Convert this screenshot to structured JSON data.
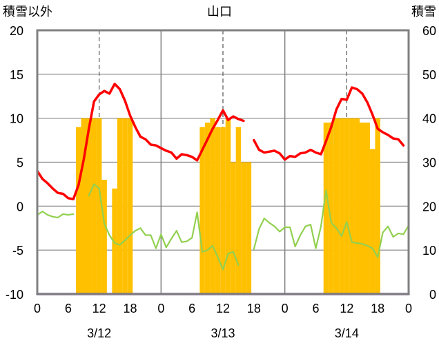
{
  "chart_data": {
    "type": "bar+line",
    "title": "山口",
    "left_axis_label": "積雪以外",
    "right_axis_label": "積雪",
    "left_ylim": [
      -10,
      20
    ],
    "left_ticks": [
      "-10",
      "-5",
      "0",
      "5",
      "10",
      "15",
      "20"
    ],
    "right_ylim": [
      0,
      60
    ],
    "right_ticks": [
      "0",
      "10",
      "20",
      "30",
      "40",
      "50",
      "60"
    ],
    "x_range": [
      0,
      72
    ],
    "x_ticks": [
      {
        "x": 0,
        "label": "0"
      },
      {
        "x": 6,
        "label": "6"
      },
      {
        "x": 12,
        "label": "12"
      },
      {
        "x": 18,
        "label": "18"
      },
      {
        "x": 24,
        "label": "0"
      },
      {
        "x": 30,
        "label": "6"
      },
      {
        "x": 36,
        "label": "12"
      },
      {
        "x": 42,
        "label": "18"
      },
      {
        "x": 48,
        "label": "0"
      },
      {
        "x": 54,
        "label": "6"
      },
      {
        "x": 60,
        "label": "12"
      },
      {
        "x": 66,
        "label": "18"
      },
      {
        "x": 72,
        "label": "0"
      }
    ],
    "date_labels": [
      {
        "x": 12,
        "label": "3/12"
      },
      {
        "x": 36,
        "label": "3/13"
      },
      {
        "x": 60,
        "label": "3/14"
      }
    ],
    "day_lines": [
      24,
      48
    ],
    "dashed_lines": [
      12,
      36,
      60
    ],
    "grid": true,
    "colors": {
      "snow": "#ffc000",
      "temperature": "#ff0000",
      "green_line": "#92d050",
      "purple_line": "#7030a0",
      "grid": "#808080",
      "frame": "#808080"
    },
    "snow_depth": [
      {
        "x": 8,
        "value": 38
      },
      {
        "x": 9,
        "value": 40
      },
      {
        "x": 10,
        "value": 40
      },
      {
        "x": 11,
        "value": 40
      },
      {
        "x": 12,
        "value": 40
      },
      {
        "x": 13,
        "value": 26
      },
      {
        "x": 15,
        "value": 24
      },
      {
        "x": 16,
        "value": 40
      },
      {
        "x": 17,
        "value": 40
      },
      {
        "x": 18,
        "value": 40
      },
      {
        "x": 32,
        "value": 38
      },
      {
        "x": 33,
        "value": 39
      },
      {
        "x": 34,
        "value": 40
      },
      {
        "x": 35,
        "value": 38
      },
      {
        "x": 36,
        "value": 38
      },
      {
        "x": 37,
        "value": 40
      },
      {
        "x": 38,
        "value": 30
      },
      {
        "x": 39,
        "value": 38
      },
      {
        "x": 40,
        "value": 30
      },
      {
        "x": 41,
        "value": 30
      },
      {
        "x": 56,
        "value": 39
      },
      {
        "x": 57,
        "value": 39
      },
      {
        "x": 58,
        "value": 40
      },
      {
        "x": 59,
        "value": 40
      },
      {
        "x": 60,
        "value": 40
      },
      {
        "x": 61,
        "value": 40
      },
      {
        "x": 62,
        "value": 40
      },
      {
        "x": 63,
        "value": 39
      },
      {
        "x": 64,
        "value": 39
      },
      {
        "x": 65,
        "value": 33
      },
      {
        "x": 66,
        "value": 40
      }
    ],
    "temperature": [
      {
        "x": 0,
        "y": 4.0
      },
      {
        "x": 1,
        "y": 3.1
      },
      {
        "x": 2,
        "y": 2.6
      },
      {
        "x": 3,
        "y": 2.0
      },
      {
        "x": 4,
        "y": 1.5
      },
      {
        "x": 5,
        "y": 1.4
      },
      {
        "x": 6,
        "y": 0.9
      },
      {
        "x": 7,
        "y": 0.8
      },
      {
        "x": 8,
        "y": 2.4
      },
      {
        "x": 9,
        "y": 5.3
      },
      {
        "x": 10,
        "y": 8.8
      },
      {
        "x": 11,
        "y": 11.9
      },
      {
        "x": 12,
        "y": 12.7
      },
      {
        "x": 13,
        "y": 13.1
      },
      {
        "x": 14,
        "y": 12.8
      },
      {
        "x": 15,
        "y": 13.9
      },
      {
        "x": 16,
        "y": 13.3
      },
      {
        "x": 17,
        "y": 12.0
      },
      {
        "x": 18,
        "y": 10.3
      },
      {
        "x": 19,
        "y": 9.0
      },
      {
        "x": 20,
        "y": 7.9
      },
      {
        "x": 21,
        "y": 7.6
      },
      {
        "x": 22,
        "y": 7.0
      },
      {
        "x": 23,
        "y": 6.9
      },
      {
        "x": 24,
        "y": 6.6
      },
      {
        "x": 25,
        "y": 6.3
      },
      {
        "x": 26,
        "y": 6.1
      },
      {
        "x": 27,
        "y": 5.4
      },
      {
        "x": 28,
        "y": 5.9
      },
      {
        "x": 29,
        "y": 5.8
      },
      {
        "x": 30,
        "y": 5.6
      },
      {
        "x": 31,
        "y": 5.2
      },
      {
        "x": 32,
        "y": 6.4
      },
      {
        "x": 33,
        "y": 7.6
      },
      {
        "x": 34,
        "y": 8.8
      },
      {
        "x": 35,
        "y": 9.8
      },
      {
        "x": 36,
        "y": 10.9
      },
      {
        "x": 37,
        "y": 9.8
      },
      {
        "x": 38,
        "y": 10.2
      },
      {
        "x": 39,
        "y": 9.9
      },
      {
        "x": 40,
        "y": 9.7
      },
      {
        "x": 41,
        "y": null
      },
      {
        "x": 42,
        "y": 7.5
      },
      {
        "x": 43,
        "y": 6.4
      },
      {
        "x": 44,
        "y": 6.1
      },
      {
        "x": 45,
        "y": 6.2
      },
      {
        "x": 46,
        "y": 6.3
      },
      {
        "x": 47,
        "y": 6.0
      },
      {
        "x": 48,
        "y": 5.3
      },
      {
        "x": 49,
        "y": 5.7
      },
      {
        "x": 50,
        "y": 5.6
      },
      {
        "x": 51,
        "y": 6.0
      },
      {
        "x": 52,
        "y": 6.1
      },
      {
        "x": 53,
        "y": 6.4
      },
      {
        "x": 54,
        "y": 6.1
      },
      {
        "x": 55,
        "y": 5.9
      },
      {
        "x": 56,
        "y": 7.4
      },
      {
        "x": 57,
        "y": 9.0
      },
      {
        "x": 58,
        "y": 11.0
      },
      {
        "x": 59,
        "y": 12.2
      },
      {
        "x": 60,
        "y": 12.1
      },
      {
        "x": 61,
        "y": 13.5
      },
      {
        "x": 62,
        "y": 13.3
      },
      {
        "x": 63,
        "y": 12.8
      },
      {
        "x": 64,
        "y": 11.8
      },
      {
        "x": 65,
        "y": 10.4
      },
      {
        "x": 66,
        "y": 8.8
      },
      {
        "x": 67,
        "y": 8.4
      },
      {
        "x": 68,
        "y": 8.1
      },
      {
        "x": 69,
        "y": 7.7
      },
      {
        "x": 70,
        "y": 7.6
      },
      {
        "x": 71,
        "y": 6.9
      }
    ],
    "green_series": [
      {
        "x": 0,
        "y": -1.0
      },
      {
        "x": 1,
        "y": -0.6
      },
      {
        "x": 2,
        "y": -1.0
      },
      {
        "x": 3,
        "y": -1.2
      },
      {
        "x": 4,
        "y": -1.3
      },
      {
        "x": 5,
        "y": -0.9
      },
      {
        "x": 6,
        "y": -1.0
      },
      {
        "x": 7,
        "y": -0.9
      },
      {
        "x": 8,
        "y": null
      },
      {
        "x": 9,
        "y": null
      },
      {
        "x": 10,
        "y": 1.2
      },
      {
        "x": 11,
        "y": 2.5
      },
      {
        "x": 12,
        "y": 2.0
      },
      {
        "x": 13,
        "y": -2.0
      },
      {
        "x": 14,
        "y": -3.3
      },
      {
        "x": 15,
        "y": -4.2
      },
      {
        "x": 16,
        "y": -4.4
      },
      {
        "x": 17,
        "y": -3.9
      },
      {
        "x": 18,
        "y": -3.3
      },
      {
        "x": 19,
        "y": -2.8
      },
      {
        "x": 20,
        "y": -2.5
      },
      {
        "x": 21,
        "y": -3.3
      },
      {
        "x": 22,
        "y": -3.3
      },
      {
        "x": 23,
        "y": -4.8
      },
      {
        "x": 24,
        "y": -3.2
      },
      {
        "x": 25,
        "y": -4.7
      },
      {
        "x": 26,
        "y": -3.7
      },
      {
        "x": 27,
        "y": -2.8
      },
      {
        "x": 28,
        "y": -4.1
      },
      {
        "x": 29,
        "y": -4.0
      },
      {
        "x": 30,
        "y": -3.6
      },
      {
        "x": 31,
        "y": -0.7
      },
      {
        "x": 32,
        "y": -5.2
      },
      {
        "x": 33,
        "y": -5.0
      },
      {
        "x": 34,
        "y": -4.5
      },
      {
        "x": 35,
        "y": -5.8
      },
      {
        "x": 36,
        "y": -7.2
      },
      {
        "x": 37,
        "y": -5.4
      },
      {
        "x": 38,
        "y": -5.2
      },
      {
        "x": 39,
        "y": -6.7
      },
      {
        "x": 40,
        "y": null
      },
      {
        "x": 41,
        "y": null
      },
      {
        "x": 42,
        "y": -4.9
      },
      {
        "x": 43,
        "y": -2.6
      },
      {
        "x": 44,
        "y": -1.4
      },
      {
        "x": 45,
        "y": -1.9
      },
      {
        "x": 46,
        "y": -2.3
      },
      {
        "x": 47,
        "y": -2.9
      },
      {
        "x": 48,
        "y": -2.4
      },
      {
        "x": 49,
        "y": -2.4
      },
      {
        "x": 50,
        "y": -4.6
      },
      {
        "x": 51,
        "y": -3.3
      },
      {
        "x": 52,
        "y": -2.3
      },
      {
        "x": 53,
        "y": -2.1
      },
      {
        "x": 54,
        "y": -4.8
      },
      {
        "x": 55,
        "y": -2.3
      },
      {
        "x": 56,
        "y": 1.8
      },
      {
        "x": 57,
        "y": -1.9
      },
      {
        "x": 58,
        "y": -2.5
      },
      {
        "x": 59,
        "y": -3.4
      },
      {
        "x": 60,
        "y": -1.8
      },
      {
        "x": 61,
        "y": -4.1
      },
      {
        "x": 62,
        "y": -4.2
      },
      {
        "x": 63,
        "y": -4.3
      },
      {
        "x": 64,
        "y": -4.5
      },
      {
        "x": 65,
        "y": -4.8
      },
      {
        "x": 66,
        "y": -5.8
      },
      {
        "x": 67,
        "y": -3.0
      },
      {
        "x": 68,
        "y": -2.3
      },
      {
        "x": 69,
        "y": -3.5
      },
      {
        "x": 70,
        "y": -3.1
      },
      {
        "x": 71,
        "y": -3.2
      },
      {
        "x": 72,
        "y": -2.2
      }
    ],
    "purple_series": [
      {
        "x": 0,
        "y": -10
      },
      {
        "x": 72,
        "y": -10
      }
    ]
  }
}
